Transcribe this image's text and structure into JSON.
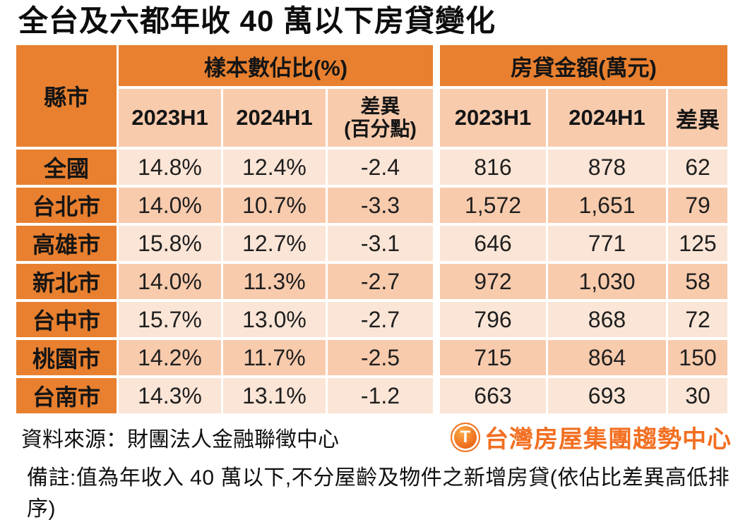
{
  "title": "全台及六都年收 40 萬以下房貸變化",
  "colors": {
    "header_orange": "#E8802F",
    "band_light": "#FBE5D6",
    "band_dark": "#F8CBAD",
    "brand_orange": "#F26F21",
    "text_black": "#111111"
  },
  "table": {
    "corner_header": "縣市",
    "group_headers": {
      "sample_share": "樣本數佔比(%)",
      "loan_amount": "房貸金額(萬元)"
    },
    "sub_headers": {
      "pct_2023": "2023H1",
      "pct_2024": "2024H1",
      "pct_diff_line1": "差異",
      "pct_diff_line2": "(百分點)",
      "amt_2023": "2023H1",
      "amt_2024": "2024H1",
      "amt_diff": "差異"
    },
    "rows": [
      {
        "region": "全國",
        "pct_2023": "14.8%",
        "pct_2024": "12.4%",
        "pct_diff": "-2.4",
        "amt_2023": "816",
        "amt_2024": "878",
        "amt_diff": "62"
      },
      {
        "region": "台北市",
        "pct_2023": "14.0%",
        "pct_2024": "10.7%",
        "pct_diff": "-3.3",
        "amt_2023": "1,572",
        "amt_2024": "1,651",
        "amt_diff": "79"
      },
      {
        "region": "高雄市",
        "pct_2023": "15.8%",
        "pct_2024": "12.7%",
        "pct_diff": "-3.1",
        "amt_2023": "646",
        "amt_2024": "771",
        "amt_diff": "125"
      },
      {
        "region": "新北市",
        "pct_2023": "14.0%",
        "pct_2024": "11.3%",
        "pct_diff": "-2.7",
        "amt_2023": "972",
        "amt_2024": "1,030",
        "amt_diff": "58"
      },
      {
        "region": "台中市",
        "pct_2023": "15.7%",
        "pct_2024": "13.0%",
        "pct_diff": "-2.7",
        "amt_2023": "796",
        "amt_2024": "868",
        "amt_diff": "72"
      },
      {
        "region": "桃園市",
        "pct_2023": "14.2%",
        "pct_2024": "11.7%",
        "pct_diff": "-2.5",
        "amt_2023": "715",
        "amt_2024": "864",
        "amt_diff": "150"
      },
      {
        "region": "台南市",
        "pct_2023": "14.3%",
        "pct_2024": "13.1%",
        "pct_diff": "-1.2",
        "amt_2023": "663",
        "amt_2024": "693",
        "amt_diff": "30"
      }
    ]
  },
  "footer": {
    "source": "資料來源：財團法人金融聯徵中心",
    "brand_icon_letter": "T",
    "brand_name": "台灣房屋集團趨勢中心",
    "note": "備註:值為年收入 40 萬以下,不分屋齡及物件之新增房貸(依佔比差異高低排序)"
  },
  "chart_data": {
    "type": "table",
    "title": "全台及六都年收 40 萬以下房貸變化",
    "column_groups": [
      "樣本數佔比(%)",
      "房貸金額(萬元)"
    ],
    "columns": [
      "縣市",
      "樣本數佔比 2023H1",
      "樣本數佔比 2024H1",
      "佔比差異(百分點)",
      "房貸金額 2023H1(萬元)",
      "房貸金額 2024H1(萬元)",
      "房貸金額差異(萬元)"
    ],
    "rows": [
      [
        "全國",
        14.8,
        12.4,
        -2.4,
        816,
        878,
        62
      ],
      [
        "台北市",
        14.0,
        10.7,
        -3.3,
        1572,
        1651,
        79
      ],
      [
        "高雄市",
        15.8,
        12.7,
        -3.1,
        646,
        771,
        125
      ],
      [
        "新北市",
        14.0,
        11.3,
        -2.7,
        972,
        1030,
        58
      ],
      [
        "台中市",
        15.7,
        13.0,
        -2.7,
        796,
        868,
        72
      ],
      [
        "桃園市",
        14.2,
        11.7,
        -2.5,
        715,
        864,
        150
      ],
      [
        "台南市",
        14.3,
        13.1,
        -1.2,
        663,
        693,
        30
      ]
    ],
    "notes": [
      "資料來源：財團法人金融聯徵中心",
      "備註:值為年收入 40 萬以下,不分屋齡及物件之新增房貸(依佔比差異高低排序)"
    ]
  }
}
